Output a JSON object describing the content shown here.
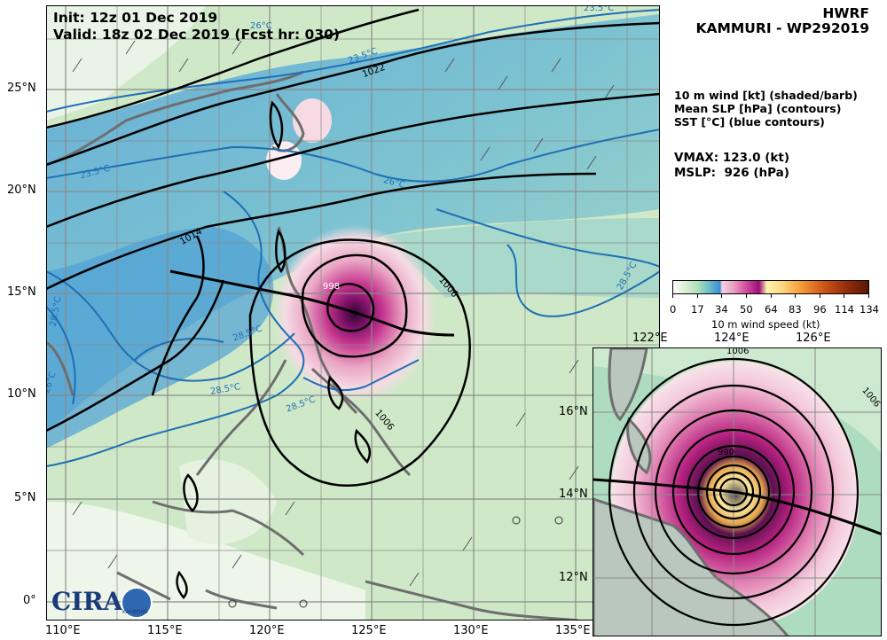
{
  "header": {
    "init": "Init:   12z 01 Dec 2019",
    "valid": "Valid: 18z 02 Dec 2019 (Fcst hr: 030)",
    "model": "HWRF",
    "storm": "KAMMURI - WP292019"
  },
  "legend": {
    "line1": "10 m wind [kt] (shaded/barb)",
    "line2": "Mean SLP [hPa] (contours)",
    "line3": "SST [°C] (blue contours)"
  },
  "stats": {
    "vmax": "VMAX: 123.0 (kt)",
    "mslp": "MSLP:  926 (hPa)"
  },
  "colorbar": {
    "ticks": [
      "0",
      "17",
      "34",
      "50",
      "64",
      "83",
      "96",
      "114",
      "134"
    ],
    "label": "10 m wind speed (kt)"
  },
  "main_axes": {
    "lon_labels": [
      "110°E",
      "115°E",
      "120°E",
      "125°E",
      "130°E",
      "135°E"
    ],
    "lat_labels": [
      "25°N",
      "20°N",
      "15°N",
      "10°N",
      "5°N",
      "0°"
    ]
  },
  "inset_axes": {
    "lon_labels": [
      "122°E",
      "124°E",
      "126°E"
    ],
    "lat_labels": [
      "16°N",
      "14°N",
      "12°N"
    ]
  },
  "contour_labels": {
    "slp": [
      "1022",
      "1014",
      "1006",
      "1006",
      "998",
      "1006",
      "1006",
      "990"
    ],
    "sst": [
      "23.5°C",
      "23.5°C",
      "23.5°C",
      "26°C",
      "28.5°C",
      "28.5°C",
      "28.5°C",
      "28.5°C",
      "28.5°C",
      "26°C",
      "26°C"
    ]
  },
  "logo": {
    "text": "CIRA",
    "badge": "KAMMURI"
  },
  "colors": {
    "ocean_cool": "#3d8ad6",
    "ocean_warm": "#b6e0ba",
    "storm_core": "#9e0d7a",
    "slp_contour": "#000000",
    "sst_contour": "#1f6fb5",
    "land_outline": "#6e6e6e"
  }
}
